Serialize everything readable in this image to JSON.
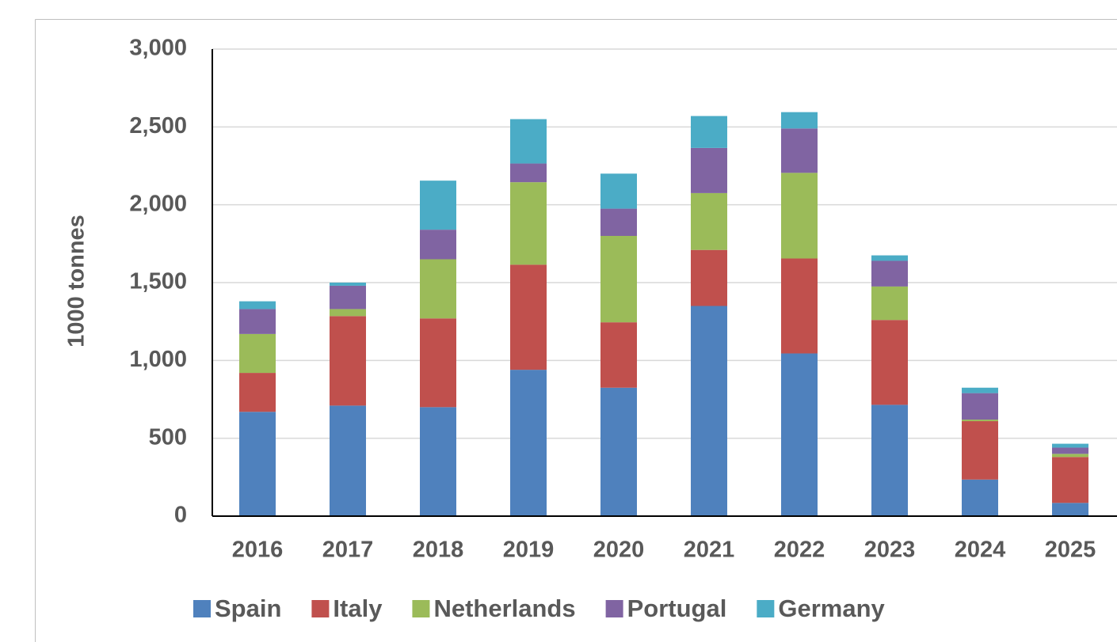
{
  "chart_data": {
    "type": "bar",
    "stacked": true,
    "y_label": "1000 tonnes",
    "categories": [
      "2016",
      "2017",
      "2018",
      "2019",
      "2020",
      "2021",
      "2022",
      "2023",
      "2024",
      "2025"
    ],
    "series": [
      {
        "name": "Spain",
        "color": "#4f81bd",
        "values": [
          670,
          710,
          700,
          940,
          825,
          1350,
          1045,
          715,
          235,
          85
        ]
      },
      {
        "name": "Italy",
        "color": "#c0504d",
        "values": [
          250,
          575,
          570,
          675,
          420,
          360,
          610,
          545,
          375,
          295
        ]
      },
      {
        "name": "Netherlands",
        "color": "#9bbb59",
        "values": [
          250,
          45,
          380,
          530,
          555,
          365,
          550,
          215,
          10,
          20
        ]
      },
      {
        "name": "Portugal",
        "color": "#8064a2",
        "values": [
          160,
          150,
          190,
          120,
          175,
          290,
          285,
          165,
          170,
          40
        ]
      },
      {
        "name": "Germany",
        "color": "#4bacc6",
        "values": [
          50,
          20,
          315,
          285,
          225,
          205,
          105,
          35,
          35,
          25
        ]
      }
    ],
    "ylim": [
      0,
      3000
    ],
    "yticks": [
      0,
      {
        "value": 500,
        "label": "500"
      },
      {
        "value": 1000,
        "label": "1,000"
      },
      {
        "value": 1500,
        "label": "1,500"
      },
      {
        "value": 2000,
        "label": "2,000"
      },
      {
        "value": 2500,
        "label": "2,500"
      },
      {
        "value": 3000,
        "label": "3,000"
      }
    ],
    "grid": true,
    "legend": "bottom"
  }
}
